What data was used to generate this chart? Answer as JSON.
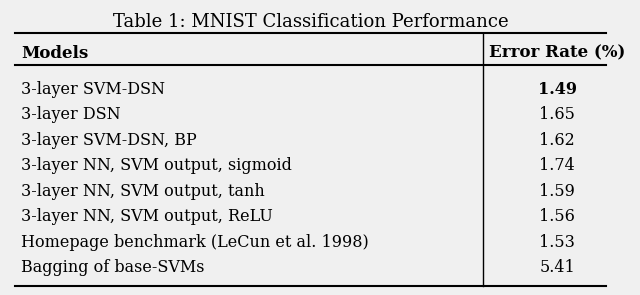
{
  "title": "Table 1: MNIST Classification Performance",
  "col1_header": "Models",
  "col2_header": "Error Rate (%)",
  "rows": [
    [
      "3-layer SVM-DSN",
      "1.49",
      true
    ],
    [
      "3-layer DSN",
      "1.65",
      false
    ],
    [
      "3-layer SVM-DSN, BP",
      "1.62",
      false
    ],
    [
      "3-layer NN, SVM output, sigmoid",
      "1.74",
      false
    ],
    [
      "3-layer NN, SVM output, tanh",
      "1.59",
      false
    ],
    [
      "3-layer NN, SVM output, ReLU",
      "1.56",
      false
    ],
    [
      "Homepage benchmark (LeCun et al. 1998)",
      "1.53",
      false
    ],
    [
      "Bagging of base-SVMs",
      "5.41",
      false
    ]
  ],
  "col_split": 0.78,
  "bg_color": "#f0f0f0",
  "title_fontsize": 13,
  "header_fontsize": 12,
  "row_fontsize": 11.5
}
